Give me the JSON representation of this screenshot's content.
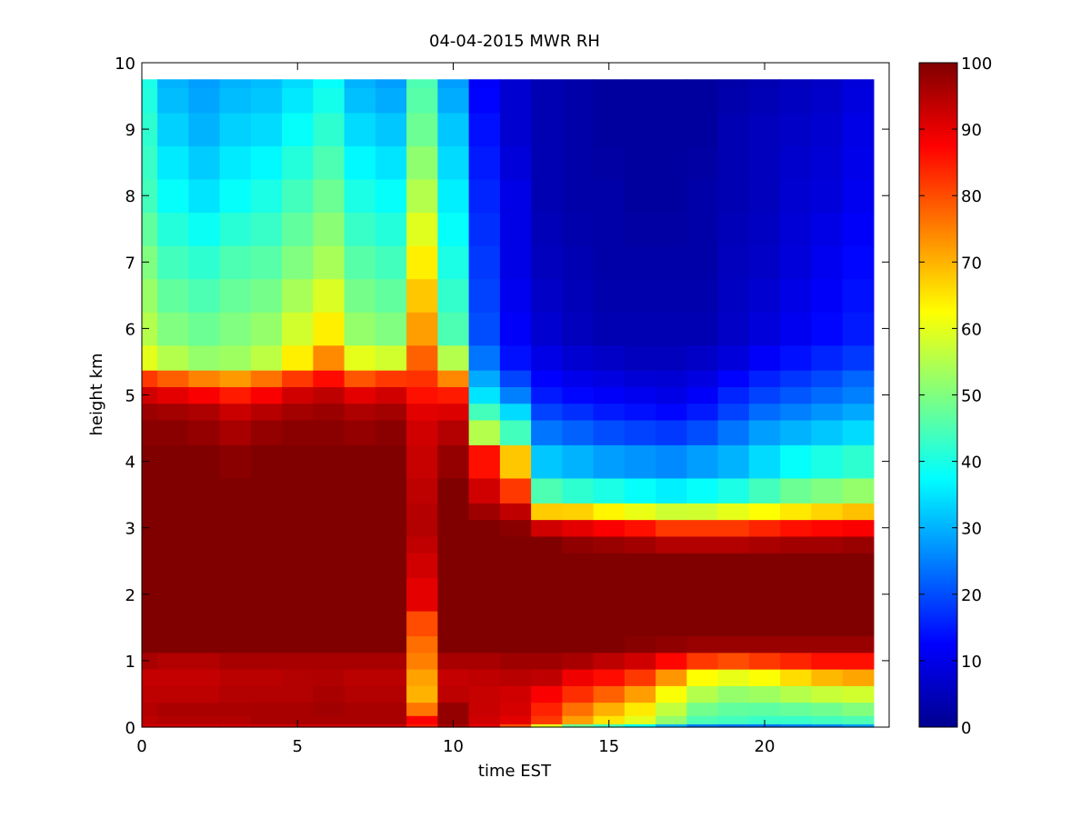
{
  "chart_data": {
    "type": "heatmap",
    "title": "04-04-2015 MWR RH",
    "xlabel": "time EST",
    "ylabel": "height km",
    "xlim": [
      0,
      24
    ],
    "ylim": [
      0,
      10
    ],
    "x_ticks": [
      0,
      5,
      10,
      15,
      20
    ],
    "y_ticks": [
      0,
      1,
      2,
      3,
      4,
      5,
      6,
      7,
      8,
      9,
      10
    ],
    "colormap": "jet",
    "colorbar": {
      "range": [
        0,
        100
      ],
      "ticks": [
        0,
        10,
        20,
        30,
        40,
        50,
        60,
        70,
        80,
        90,
        100
      ]
    },
    "x": [
      0,
      1,
      2,
      3,
      4,
      5,
      6,
      7,
      8,
      9,
      10,
      11,
      12,
      13,
      14,
      15,
      16,
      17,
      18,
      19,
      20,
      21,
      22,
      23
    ],
    "y_levels": [
      0,
      0.1,
      0.25,
      0.5,
      0.75,
      1.0,
      1.25,
      1.5,
      2.0,
      2.5,
      2.75,
      3.0,
      3.25,
      3.5,
      4.0,
      4.5,
      4.75,
      5.0,
      5.25,
      5.5,
      6.0,
      6.5,
      7.0,
      7.5,
      8.0,
      8.5,
      9.0,
      9.5,
      9.75
    ],
    "anchors": {
      "heights": [
        0,
        0.1,
        0.3,
        0.5,
        0.8,
        1.0,
        1.2,
        1.5,
        2.0,
        2.5,
        2.8,
        3.0,
        3.2,
        3.5,
        4.0,
        4.5,
        4.8,
        5.0,
        5.3,
        5.5,
        6.0,
        7.0,
        8.0,
        9.0,
        9.75
      ],
      "columns": [
        [
          92,
          94,
          95,
          94,
          93,
          96,
          100,
          100,
          100,
          100,
          100,
          100,
          100,
          100,
          100,
          99,
          97,
          92,
          80,
          60,
          55,
          50,
          44,
          42,
          40
        ],
        [
          92,
          95,
          96,
          94,
          93,
          95,
          100,
          100,
          100,
          100,
          100,
          100,
          100,
          100,
          100,
          99,
          96,
          90,
          76,
          55,
          50,
          44,
          38,
          33,
          30
        ],
        [
          92,
          95,
          96,
          94,
          93,
          95,
          100,
          100,
          100,
          100,
          100,
          100,
          100,
          100,
          100,
          98,
          95,
          88,
          72,
          52,
          48,
          42,
          35,
          30,
          28
        ],
        [
          92,
          95,
          96,
          95,
          94,
          96,
          100,
          100,
          100,
          100,
          100,
          100,
          100,
          100,
          99,
          96,
          92,
          85,
          70,
          53,
          50,
          45,
          38,
          33,
          30
        ],
        [
          92,
          96,
          96,
          95,
          94,
          96,
          100,
          100,
          100,
          100,
          100,
          100,
          100,
          100,
          100,
          98,
          94,
          88,
          74,
          56,
          52,
          46,
          40,
          34,
          31
        ],
        [
          92,
          96,
          96,
          95,
          95,
          96,
          100,
          100,
          100,
          100,
          100,
          100,
          100,
          100,
          100,
          99,
          96,
          92,
          80,
          64,
          58,
          50,
          44,
          38,
          34
        ],
        [
          92,
          96,
          97,
          96,
          95,
          96,
          100,
          100,
          100,
          100,
          100,
          100,
          100,
          100,
          100,
          99,
          97,
          94,
          85,
          74,
          64,
          54,
          48,
          42,
          38
        ],
        [
          92,
          96,
          96,
          95,
          94,
          96,
          100,
          100,
          100,
          100,
          100,
          100,
          100,
          100,
          100,
          98,
          95,
          90,
          77,
          60,
          52,
          46,
          40,
          34,
          30
        ],
        [
          92,
          96,
          96,
          95,
          94,
          96,
          100,
          100,
          100,
          100,
          100,
          100,
          100,
          100,
          100,
          99,
          96,
          92,
          80,
          58,
          50,
          44,
          38,
          32,
          28
        ],
        [
          85,
          88,
          72,
          70,
          72,
          75,
          76,
          80,
          90,
          92,
          94,
          95,
          95,
          94,
          93,
          92,
          90,
          86,
          82,
          78,
          72,
          64,
          55,
          48,
          45
        ],
        [
          96,
          98,
          98,
          94,
          93,
          96,
          100,
          100,
          100,
          100,
          100,
          100,
          100,
          100,
          98,
          95,
          90,
          85,
          72,
          55,
          45,
          40,
          36,
          32,
          28
        ],
        [
          90,
          92,
          93,
          93,
          94,
          96,
          100,
          100,
          100,
          100,
          100,
          100,
          98,
          92,
          86,
          55,
          42,
          35,
          28,
          24,
          20,
          18,
          16,
          14,
          12
        ],
        [
          80,
          90,
          92,
          92,
          95,
          97,
          100,
          100,
          100,
          100,
          100,
          99,
          96,
          82,
          68,
          44,
          32,
          25,
          18,
          14,
          12,
          10,
          10,
          8,
          8
        ],
        [
          60,
          82,
          85,
          88,
          95,
          97,
          100,
          100,
          100,
          100,
          100,
          92,
          72,
          45,
          32,
          24,
          18,
          15,
          12,
          10,
          8,
          6,
          5,
          5,
          5
        ],
        [
          48,
          72,
          78,
          83,
          90,
          96,
          100,
          100,
          100,
          100,
          98,
          90,
          72,
          42,
          30,
          22,
          16,
          13,
          10,
          8,
          6,
          5,
          4,
          4,
          4
        ],
        [
          44,
          65,
          72,
          78,
          88,
          94,
          100,
          100,
          100,
          100,
          97,
          88,
          68,
          40,
          28,
          20,
          14,
          12,
          9,
          7,
          5,
          4,
          4,
          3,
          3
        ],
        [
          38,
          60,
          66,
          72,
          84,
          92,
          99,
          100,
          100,
          100,
          96,
          86,
          65,
          38,
          27,
          19,
          13,
          11,
          8,
          6,
          5,
          4,
          3,
          3,
          3
        ],
        [
          30,
          52,
          58,
          62,
          75,
          87,
          98,
          100,
          100,
          100,
          94,
          82,
          62,
          36,
          26,
          18,
          12,
          10,
          8,
          6,
          5,
          4,
          3,
          3,
          3
        ],
        [
          25,
          45,
          50,
          55,
          64,
          82,
          97,
          100,
          100,
          100,
          94,
          82,
          62,
          38,
          28,
          20,
          14,
          12,
          9,
          7,
          5,
          4,
          4,
          3,
          3
        ],
        [
          24,
          44,
          48,
          52,
          62,
          80,
          97,
          100,
          100,
          100,
          94,
          82,
          64,
          40,
          30,
          24,
          18,
          16,
          12,
          9,
          7,
          6,
          5,
          5,
          4
        ],
        [
          24,
          43,
          48,
          53,
          64,
          82,
          97,
          100,
          100,
          100,
          95,
          84,
          66,
          44,
          34,
          28,
          22,
          19,
          15,
          12,
          9,
          7,
          6,
          6,
          5
        ],
        [
          25,
          43,
          49,
          55,
          68,
          84,
          97,
          100,
          100,
          100,
          96,
          86,
          68,
          48,
          38,
          30,
          24,
          21,
          17,
          14,
          11,
          9,
          8,
          7,
          6
        ],
        [
          26,
          44,
          50,
          57,
          72,
          86,
          97,
          100,
          100,
          100,
          96,
          87,
          70,
          50,
          40,
          32,
          26,
          23,
          19,
          16,
          13,
          11,
          9,
          8,
          7
        ],
        [
          28,
          45,
          52,
          58,
          74,
          86,
          97,
          100,
          100,
          100,
          97,
          88,
          72,
          52,
          42,
          34,
          28,
          25,
          22,
          18,
          15,
          13,
          11,
          10,
          9
        ]
      ]
    }
  }
}
